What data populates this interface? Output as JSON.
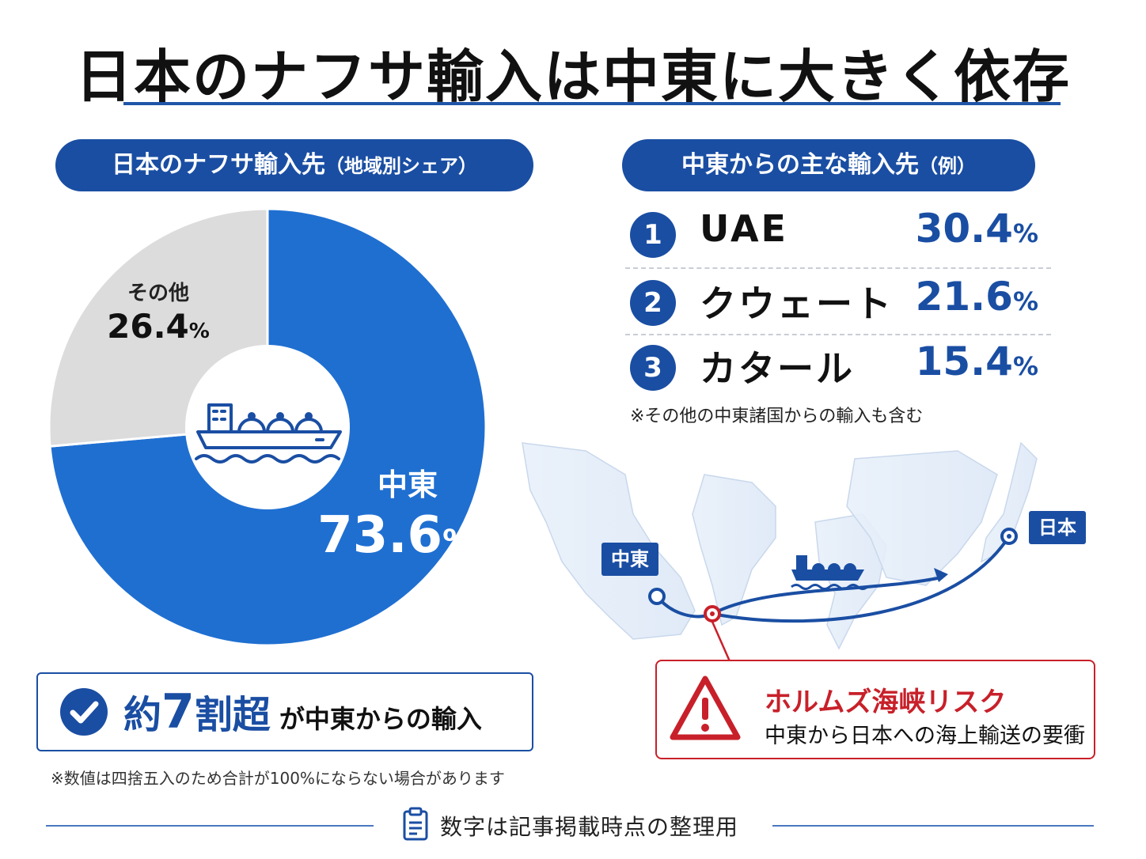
{
  "title": "日本のナフサ輸入は中東に大きく依存",
  "left_panel": {
    "heading": "日本のナフサ輸入先",
    "heading_suffix": "（地域別シェア）"
  },
  "right_panel": {
    "heading": "中東からの主な輸入先",
    "heading_suffix": "（例）",
    "items": [
      {
        "rank": "1",
        "name": "UAE",
        "value": "30.4",
        "unit": "%"
      },
      {
        "rank": "2",
        "name": "クウェート",
        "value": "21.6",
        "unit": "%"
      },
      {
        "rank": "3",
        "name": "カタール",
        "value": "15.4",
        "unit": "%"
      }
    ],
    "note": "※その他の中東諸国からの輸入も含む"
  },
  "chart_data": {
    "type": "pie",
    "donut": true,
    "unit": "%",
    "slices": [
      {
        "name": "中東",
        "value": 73.6,
        "color": "#1f6fd1"
      },
      {
        "name": "その他",
        "value": 26.4,
        "color": "#dcdcdc"
      }
    ],
    "center_icon": "tanker-ship-icon"
  },
  "callout": {
    "prefix": "約",
    "number": "7",
    "suffix_big": "割超",
    "rest": "が中東からの輸入",
    "icon": "check-circle-icon"
  },
  "footnote": "※数値は四捨五入のため合計が100%にならない場合があります",
  "map": {
    "origin_label": "中東",
    "dest_label": "日本",
    "icon": "tanker-ship-icon"
  },
  "risk": {
    "title": "ホルムズ海峡リスク",
    "subtitle": "中東から日本への海上輸送の要衝",
    "icon": "warning-triangle-icon"
  },
  "bottom_note": "数字は記事掲載時点の整理用",
  "colors": {
    "primary": "#1a4ea3",
    "donut_main": "#1f6fd1",
    "donut_other": "#dcdcdc",
    "risk": "#c8202a"
  }
}
